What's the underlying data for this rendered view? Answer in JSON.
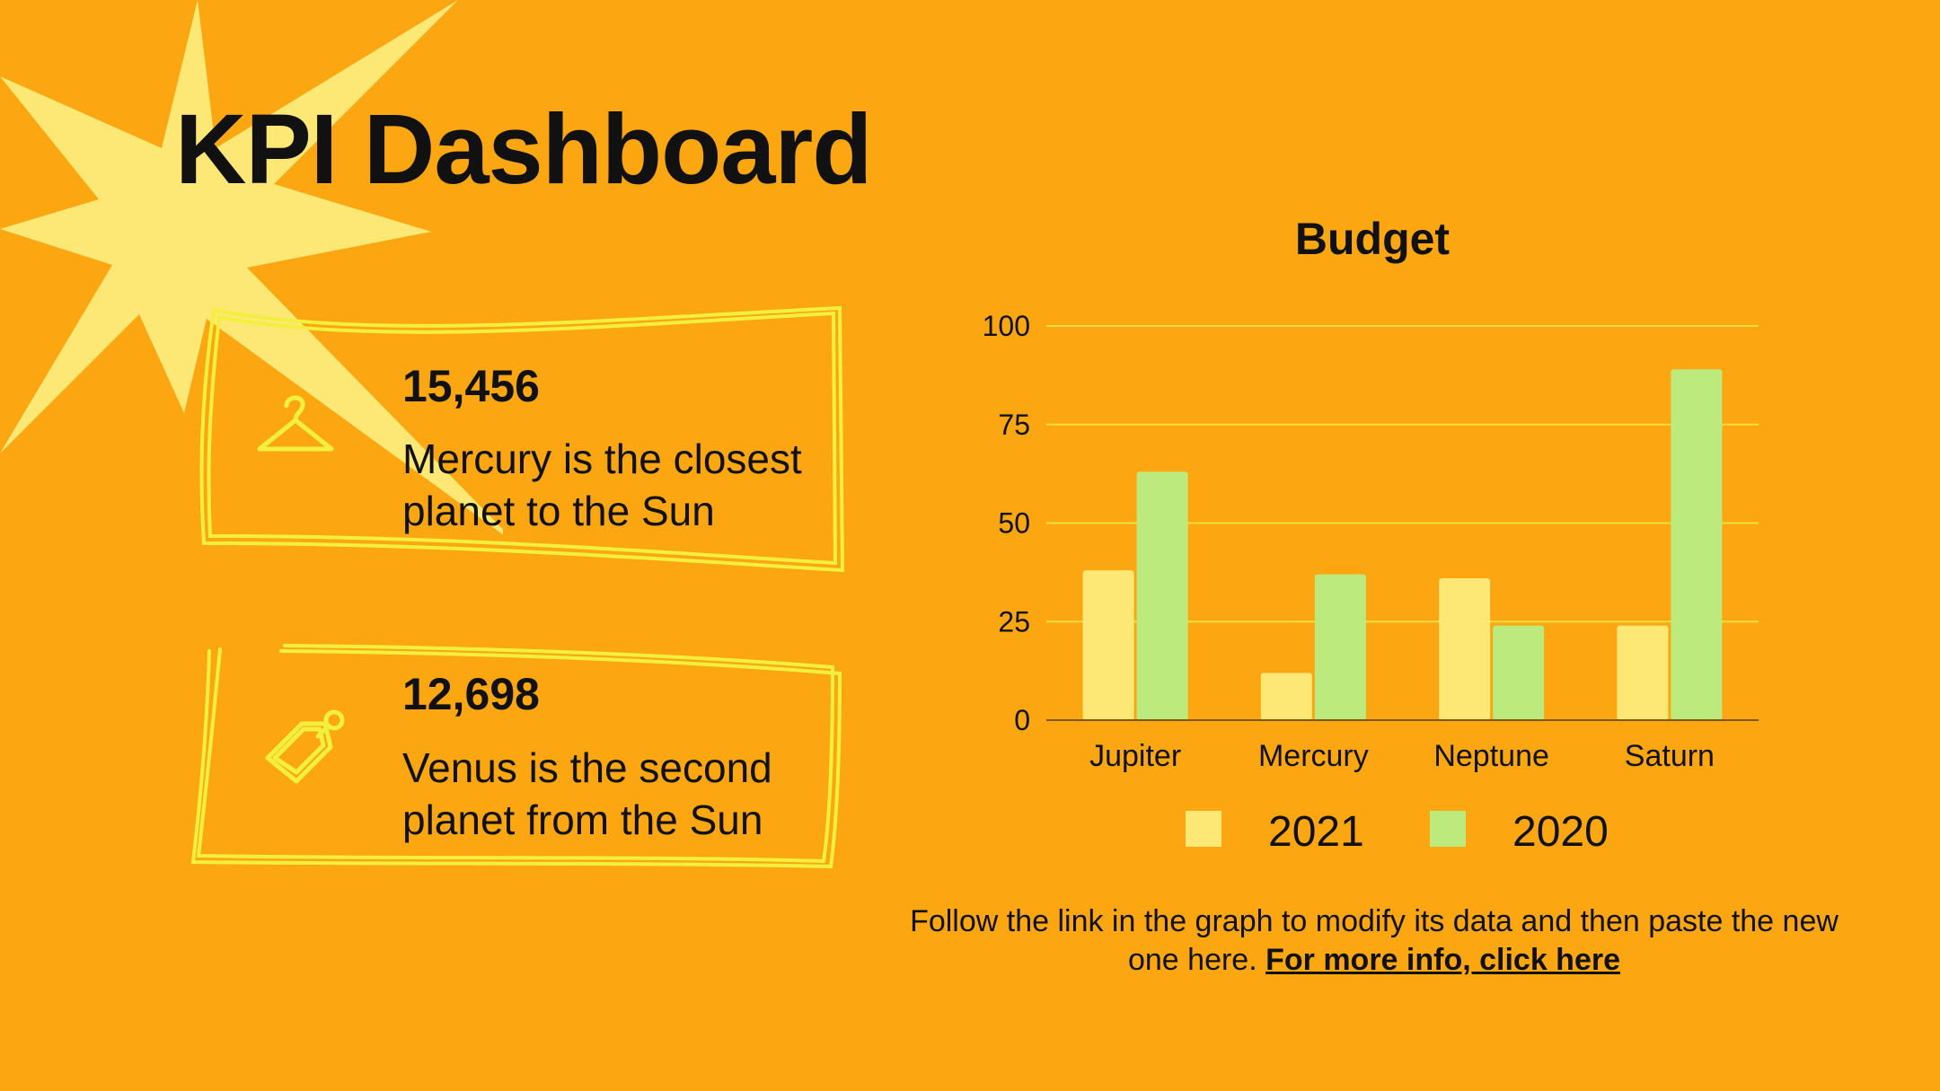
{
  "title": "KPI Dashboard",
  "kpis": [
    {
      "value": "15,456",
      "description": "Mercury is the closest planet to the Sun",
      "icon": "hanger-icon"
    },
    {
      "value": "12,698",
      "description": "Venus is the second planet from the Sun",
      "icon": "price-tag-icon"
    }
  ],
  "colors": {
    "background": "#FCA712",
    "star": "#FDE775",
    "frame": "#F2F03C",
    "series_2021": "#FDE775",
    "series_2020": "#BDEA7D",
    "grid": "#F2E03A"
  },
  "chart_data": {
    "type": "bar",
    "title": "Budget",
    "categories": [
      "Jupiter",
      "Mercury",
      "Neptune",
      "Saturn"
    ],
    "series": [
      {
        "name": "2021",
        "values": [
          38,
          12,
          36,
          24
        ]
      },
      {
        "name": "2020",
        "values": [
          63,
          37,
          24,
          89
        ]
      }
    ],
    "xlabel": "",
    "ylabel": "",
    "ylim": [
      0,
      100
    ],
    "yticks": [
      0,
      25,
      50,
      75,
      100
    ],
    "grid": true,
    "legend_position": "bottom"
  },
  "footnote": {
    "text": "Follow the link in the graph to modify its data and then paste the new one here. ",
    "link_text": "For more info, click here"
  }
}
